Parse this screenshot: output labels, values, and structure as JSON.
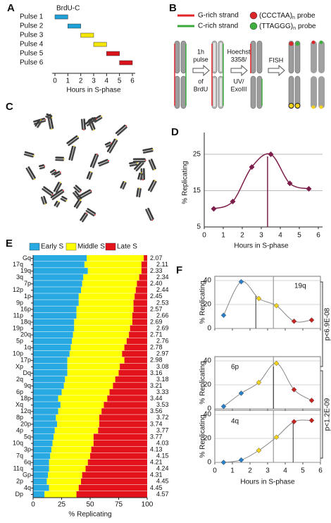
{
  "panel_labels": [
    "A",
    "B",
    "C",
    "D",
    "E",
    "F"
  ],
  "diagram_b": {
    "legend": [
      {
        "label": "G-rich strand",
        "color": "#e0242a"
      },
      {
        "label": "C-rich strand",
        "color": "#3aa83a"
      }
    ],
    "probes": [
      {
        "text": "(CCCTAA)",
        "subscript": "n",
        "suffix": "probe",
        "color": "#d9262b"
      },
      {
        "text": "(TTAGGG)",
        "subscript": "n",
        "suffix": "probe",
        "color": "#3fae3f"
      }
    ],
    "steps": [
      [
        "1h",
        "pulse",
        "of",
        "BrdU"
      ],
      [
        "Hoechst",
        "3358/",
        "UV/",
        "ExoIII"
      ],
      [
        "FISH"
      ]
    ]
  },
  "f_pvalues": [
    "p<6.9E-08",
    "p<1.2E-09"
  ],
  "chart_data": [
    {
      "type": "range_bar",
      "annotation": "BrdU-C",
      "categories": [
        "Pulse 1",
        "Pulse 2",
        "Pulse 3",
        "Pulse 4",
        "Pulse 5",
        "Pulse 6"
      ],
      "starts": [
        0,
        1,
        2,
        3,
        4,
        5
      ],
      "ends": [
        1,
        2,
        3,
        4,
        5,
        6
      ],
      "colors": [
        "#1ea0d8",
        "#1ea0d8",
        "#f5e600",
        "#f5e600",
        "#d9141c",
        "#d9141c"
      ],
      "xlim": [
        0,
        6
      ],
      "xticks": [
        0,
        1,
        2,
        3,
        4,
        5,
        6
      ],
      "xlabel": "Hours in S-phase"
    },
    {
      "type": "line",
      "x": [
        0.5,
        1.5,
        2.5,
        3.5,
        4.5,
        5.5
      ],
      "values": [
        10,
        12,
        21.5,
        25,
        17,
        15.5
      ],
      "color": "#7b1f4a",
      "marker_x": 3.33,
      "smooth": true,
      "grid": true,
      "xlim": [
        0,
        6
      ],
      "xticks": [
        0,
        1,
        2,
        3,
        4,
        5,
        6
      ],
      "ylim": [
        5,
        31
      ],
      "yticks": [
        5,
        15,
        25
      ],
      "xlabel": "Hours in S-phase",
      "ylabel": "% Replicating"
    },
    {
      "type": "stacked_bar_horizontal",
      "categories": [
        "Gq",
        "17q",
        "19q",
        "3q",
        "7p",
        "12p",
        "1p",
        "9p",
        "16p",
        "11p",
        "18q",
        "19p",
        "20q",
        "5p",
        "1q",
        "10p",
        "17p",
        "Xp",
        "Dq",
        "2q",
        "9q",
        "6p",
        "18p",
        "Xq",
        "12q",
        "8p",
        "20p",
        "4p",
        "5q",
        "10q",
        "3p",
        "7q",
        "6q",
        "11q",
        "Gp",
        "2p",
        "4q",
        "Dp"
      ],
      "right_labels": [
        "2.07",
        "2.11",
        "2.33",
        "2.34",
        "2.40",
        "2.44",
        "2.45",
        "2.53",
        "2.57",
        "2.66",
        "2.69",
        "2.69",
        "2.71",
        "2.76",
        "2.78",
        "2.97",
        "2.98",
        "3.08",
        "3.16",
        "3.18",
        "3.21",
        "3.33",
        "3.44",
        "3.53",
        "3.56",
        "3.72",
        "3.74",
        "3.77",
        "3.77",
        "4.03",
        "4.13",
        "4.15",
        "4.21",
        "4.24",
        "4.31",
        "4.45",
        "4.45",
        "4.57"
      ],
      "series": [
        {
          "name": "Early S",
          "color": "#29a9e1",
          "values": [
            47,
            45,
            48,
            44,
            43,
            42,
            40,
            40,
            38,
            38,
            36,
            36,
            35,
            34,
            33,
            32,
            30,
            30,
            30,
            28,
            27,
            25,
            22,
            24,
            22,
            20,
            21,
            19,
            18,
            17,
            16,
            15,
            14,
            14,
            13,
            12,
            14,
            10
          ]
        },
        {
          "name": "Middle S",
          "color": "#ffff00",
          "values": [
            50,
            50,
            47,
            49,
            48,
            48,
            49,
            48,
            50,
            49,
            51,
            49,
            49,
            48,
            47,
            46,
            50,
            46,
            45,
            44,
            43,
            42,
            43,
            38,
            38,
            38,
            37,
            38,
            35,
            36,
            35,
            35,
            34,
            32,
            30,
            30,
            26,
            28
          ]
        },
        {
          "name": "Late S",
          "color": "#e3131b",
          "values": [
            3,
            5,
            5,
            7,
            9,
            10,
            11,
            12,
            12,
            13,
            13,
            15,
            16,
            18,
            20,
            22,
            20,
            24,
            25,
            28,
            30,
            33,
            35,
            38,
            40,
            42,
            42,
            43,
            47,
            47,
            49,
            50,
            52,
            54,
            57,
            58,
            60,
            62
          ]
        }
      ],
      "xlim": [
        0,
        100
      ],
      "xticks": [
        0,
        25,
        50,
        75,
        100
      ],
      "xlabel": "% Replicating"
    },
    {
      "type": "line_points",
      "label": "19q",
      "x": [
        0.5,
        1.5,
        2.5,
        3.5,
        4.5,
        5.5
      ],
      "values": [
        11,
        39,
        25,
        19,
        6,
        7
      ],
      "point_colors": [
        "#2a7fc9",
        "#2a7fc9",
        "#f2d21b",
        "#f2d21b",
        "#c8231e",
        "#c8231e"
      ],
      "marker_x": 2.33,
      "reference_x": 3.33,
      "xlim": [
        0,
        6
      ],
      "xticks": [
        0,
        1,
        2,
        3,
        4,
        5,
        6
      ],
      "ylim": [
        0,
        40
      ],
      "yticks": [
        0,
        20,
        40
      ],
      "ylabel": "% Replicating"
    },
    {
      "type": "line_points",
      "label": "6p",
      "x": [
        0.5,
        1.5,
        2.5,
        3.5,
        4.5,
        5.5
      ],
      "values": [
        2,
        13,
        22,
        38,
        16,
        7
      ],
      "point_colors": [
        "#2a7fc9",
        "#2a7fc9",
        "#f2d21b",
        "#f2d21b",
        "#c8231e",
        "#c8231e"
      ],
      "marker_x": 3.33,
      "reference_x": 3.33,
      "xlim": [
        0,
        6
      ],
      "xticks": [
        0,
        1,
        2,
        3,
        4,
        5,
        6
      ],
      "ylim": [
        0,
        40
      ],
      "yticks": [
        0,
        20,
        40
      ],
      "ylabel": "% Replicating"
    },
    {
      "type": "line_points",
      "label": "4q",
      "x": [
        0.5,
        1.5,
        2.5,
        3.5,
        4.5,
        5.5
      ],
      "values": [
        0,
        2,
        10,
        21,
        34,
        35
      ],
      "point_colors": [
        "#2a7fc9",
        "#2a7fc9",
        "#f2d21b",
        "#f2d21b",
        "#c8231e",
        "#c8231e"
      ],
      "marker_x": 4.45,
      "reference_x": 3.33,
      "xlim": [
        0,
        6
      ],
      "xticks": [
        0,
        1,
        2,
        3,
        4,
        5,
        6
      ],
      "ylim": [
        0,
        40
      ],
      "yticks": [
        0,
        20,
        40
      ],
      "ylabel": "% Replicating",
      "xlabel": "Hours in S-phase"
    }
  ]
}
